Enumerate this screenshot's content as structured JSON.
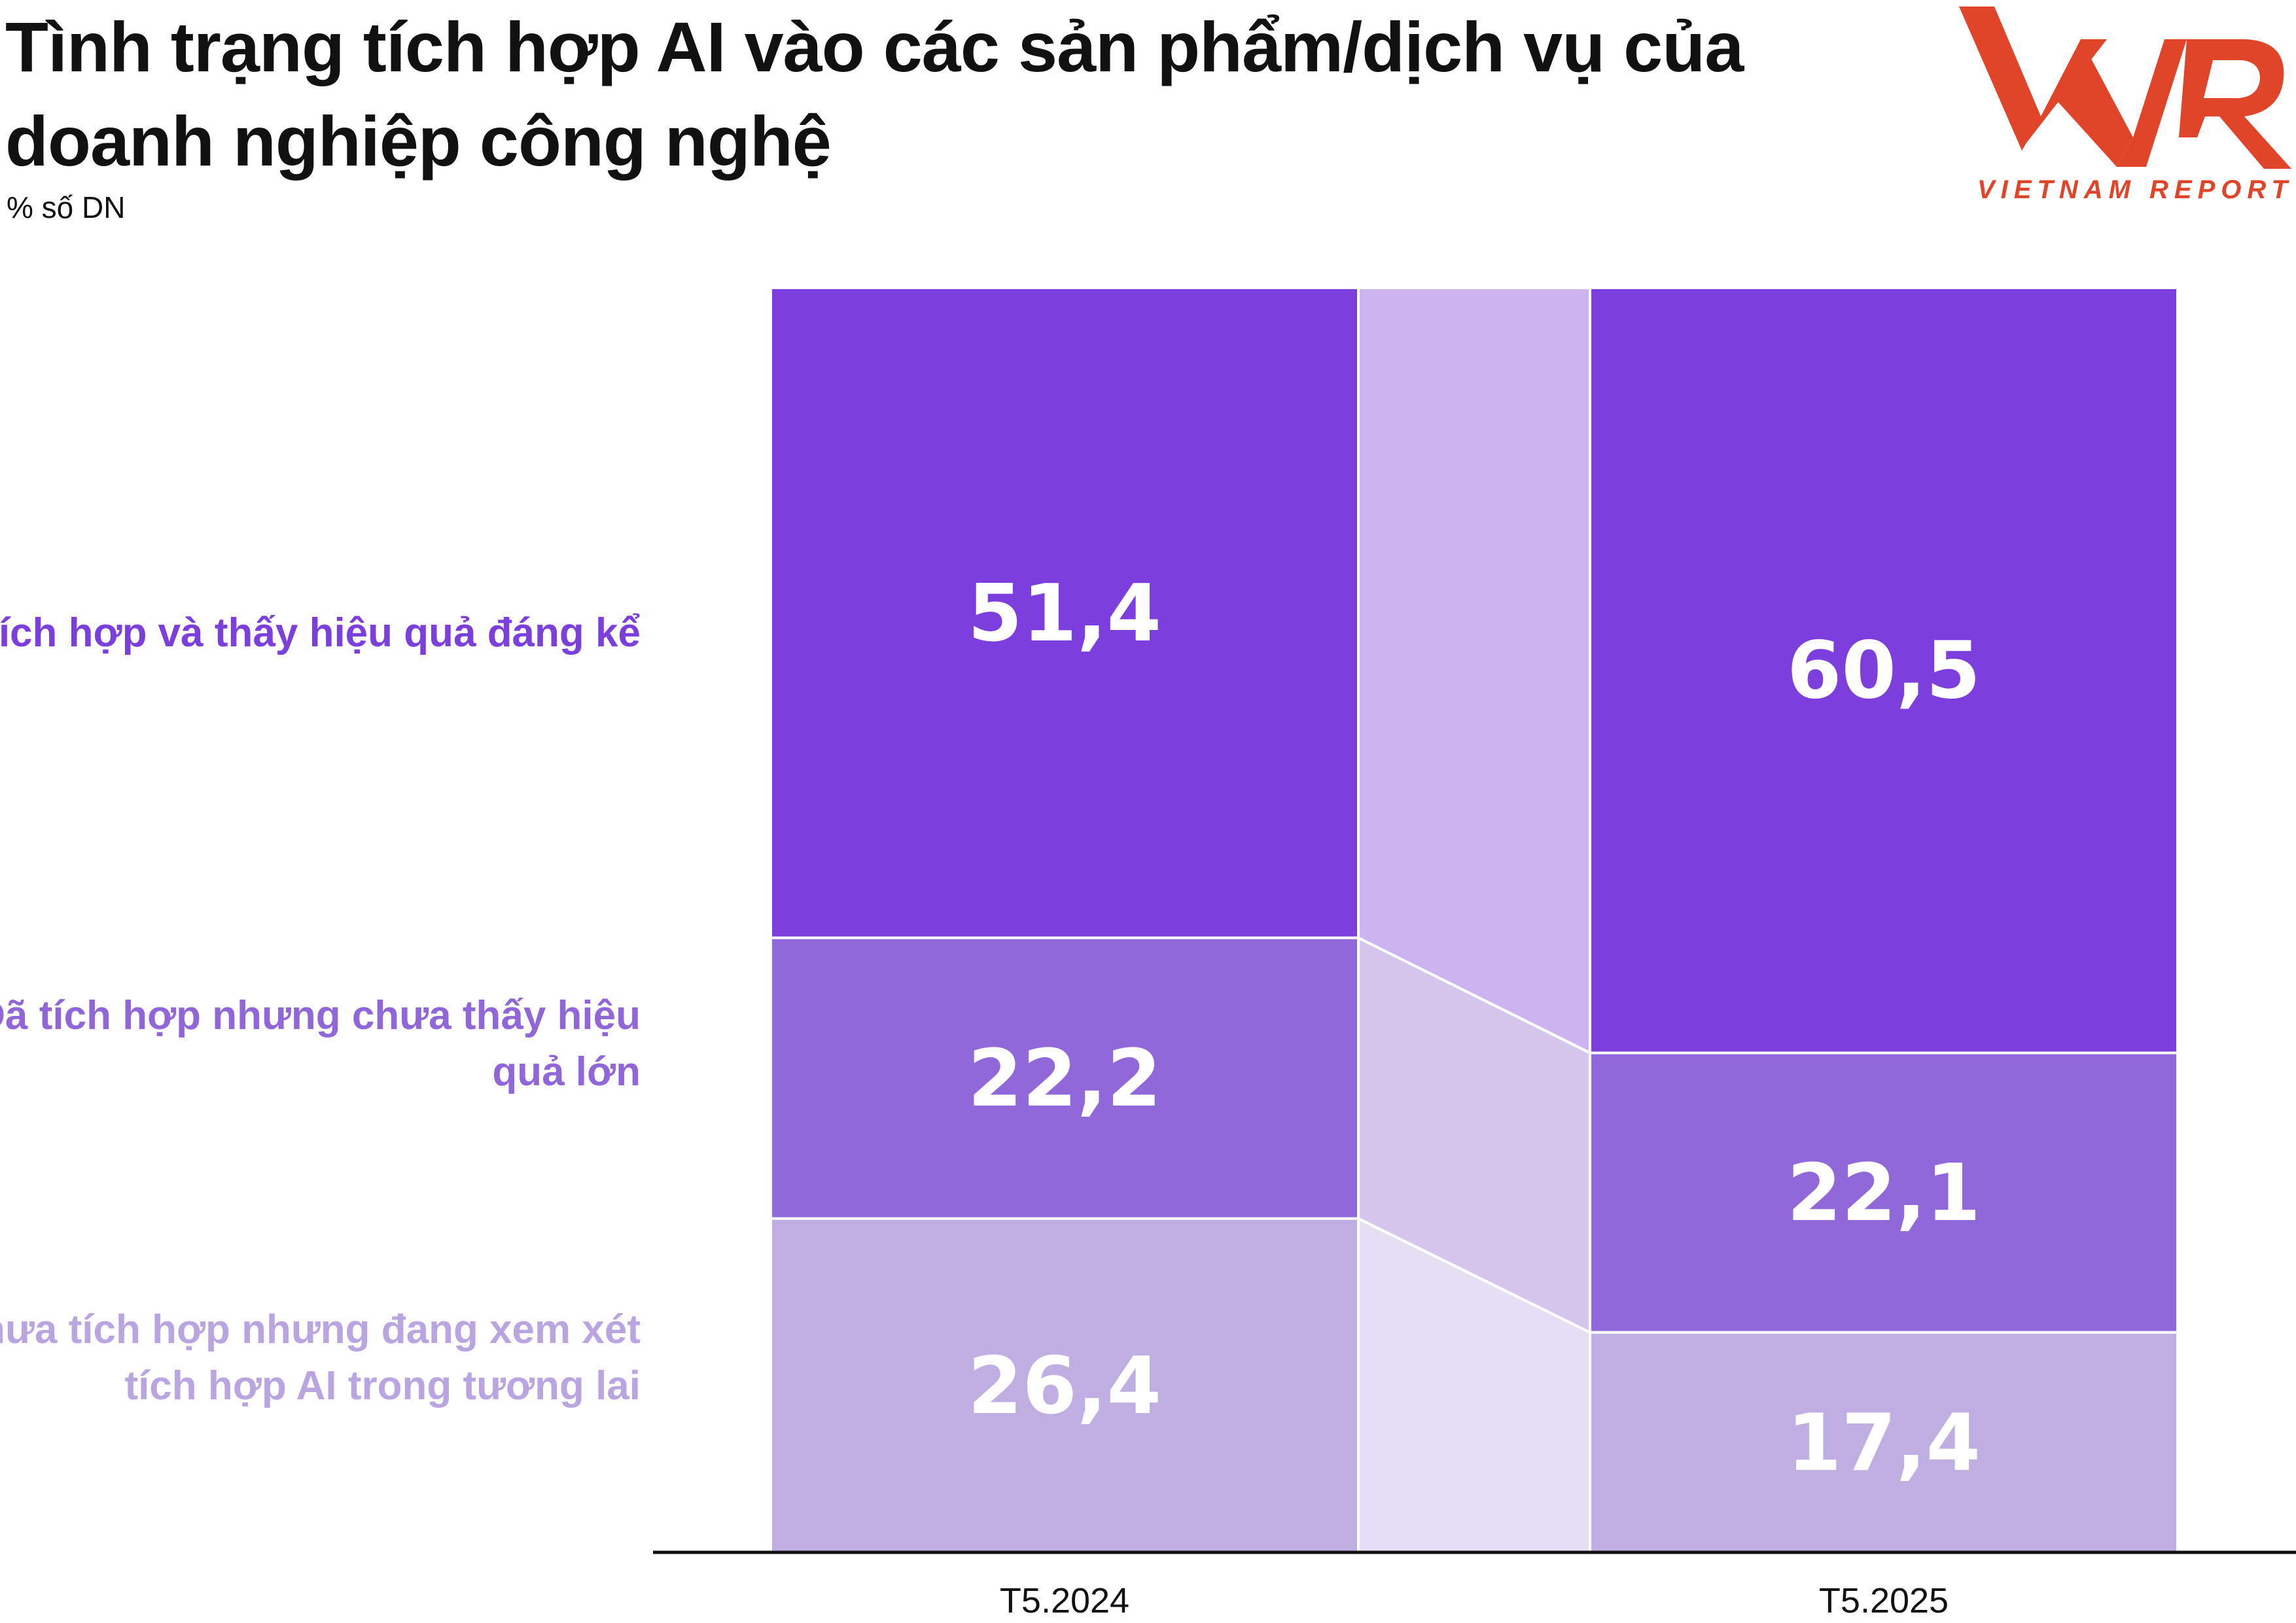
{
  "header": {
    "title": "Tình trạng tích hợp AI vào các sản phẩm/dịch vụ của doanh nghiệp công nghệ",
    "subtitle": "% số DN"
  },
  "logo": {
    "mark": "VNR",
    "caption": "VIETNAM REPORT",
    "color": "#e0452a"
  },
  "chart_data": {
    "type": "bar",
    "stacked": true,
    "stack_order": "bottom-to-top",
    "categories": [
      "T5.2024",
      "T5.2025"
    ],
    "series": [
      {
        "name": "Chưa tích hợp nhưng đang xem xét tích hợp AI trong tương lai",
        "values": [
          26.4,
          17.4
        ],
        "labels": [
          "26,4",
          "17,4"
        ],
        "color": "#bfaee2"
      },
      {
        "name": "Đã tích hợp nhưng chưa thấy hiệu quả lớn",
        "values": [
          22.2,
          22.1
        ],
        "labels": [
          "22,2",
          "22,1"
        ],
        "color": "#9168d9"
      },
      {
        "name": "Đã tích hợp và thấy hiệu quả đáng kể",
        "values": [
          51.4,
          60.5
        ],
        "labels": [
          "51,4",
          "60,5"
        ],
        "color": "#7c3edc"
      }
    ],
    "connector_colors": [
      "#e6dff3",
      "#d5c6ee",
      "#ccb4ef"
    ],
    "ylim": [
      0,
      100
    ],
    "grid": false,
    "legend": "left, inline labels"
  }
}
